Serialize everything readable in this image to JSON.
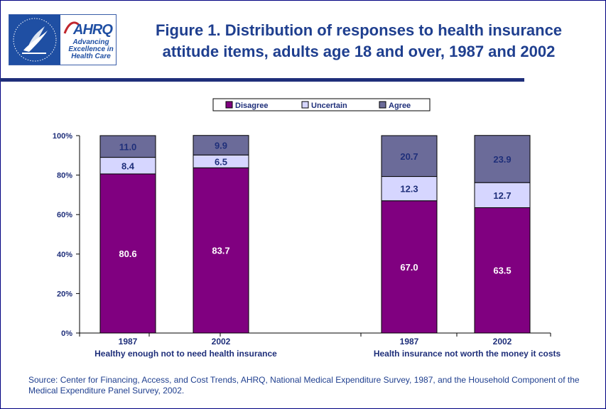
{
  "logo": {
    "ring_text": "DEPARTMENT OF HEALTH & HUMAN SERVICES",
    "ahrq": "AHRQ",
    "tagline": [
      "Advancing",
      "Excellence in",
      "Health Care"
    ]
  },
  "colors": {
    "frame": "#000080",
    "title": "#1f3f8f",
    "disagree": "#800080",
    "uncertain": "#d6d6ff",
    "agree": "#6b6b99"
  },
  "chart_data": {
    "type": "bar",
    "stacked": true,
    "title": "Figure 1. Distribution of responses to health insurance attitude items, adults age 18 and over, 1987 and 2002",
    "title_lines": [
      "Figure 1. Distribution of responses to health insurance",
      "attitude items, adults age 18 and over, 1987 and 2002"
    ],
    "xlabel": "",
    "ylabel": "",
    "ylim": [
      0,
      100
    ],
    "yticks": [
      "0%",
      "20%",
      "40%",
      "60%",
      "80%",
      "100%"
    ],
    "legend_position": "top",
    "groups": [
      {
        "label": "Healthy enough not to need health insurance",
        "categories": [
          "1987",
          "2002"
        ]
      },
      {
        "label": "Health insurance not worth the money it costs",
        "categories": [
          "1987",
          "2002"
        ]
      }
    ],
    "categories": [
      "1987",
      "2002",
      "1987",
      "2002"
    ],
    "series": [
      {
        "name": "Disagree",
        "values": [
          80.6,
          83.7,
          67.0,
          63.5
        ],
        "labels": [
          "80.6",
          "83.7",
          "67.0",
          "63.5"
        ]
      },
      {
        "name": "Uncertain",
        "values": [
          8.4,
          6.5,
          12.3,
          12.7
        ],
        "labels": [
          "8.4",
          "6.5",
          "12.3",
          "12.7"
        ]
      },
      {
        "name": "Agree",
        "values": [
          11.0,
          9.9,
          20.7,
          23.9
        ],
        "labels": [
          "11.0",
          "9.9",
          "20.7",
          "23.9"
        ]
      }
    ]
  },
  "source": "Source: Center for Financing, Access, and Cost Trends, AHRQ, National Medical Expenditure Survey, 1987, and the Household Component of the Medical Expenditure Panel Survey, 2002."
}
